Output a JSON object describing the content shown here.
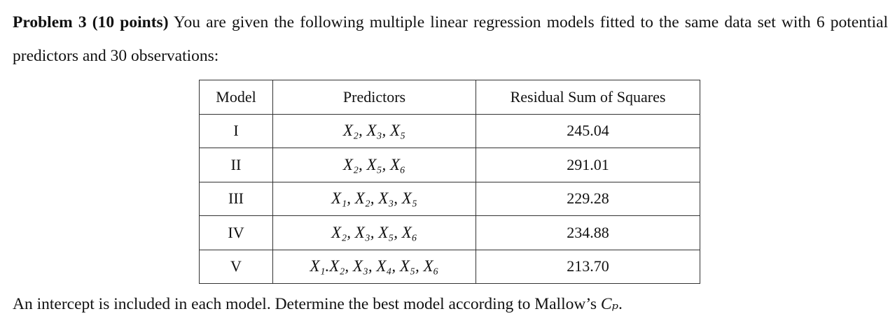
{
  "problem": {
    "label": "Problem 3 (10 points)",
    "intro": "You are given the following multiple linear regression models fitted to the same data set with 6 potential predictors and 30 observations:"
  },
  "table": {
    "headers": [
      "Model",
      "Predictors",
      "Residual Sum of Squares"
    ],
    "rows": [
      [
        "I",
        "X₂, X₃, X₅",
        "245.04"
      ],
      [
        "II",
        "X₂, X₅, X₆",
        "291.01"
      ],
      [
        "III",
        "X₁, X₂, X₃, X₅",
        "229.28"
      ],
      [
        "IV",
        "X₂, X₃, X₅, X₆",
        "234.88"
      ],
      [
        "V",
        "X₁.X₂, X₃, X₄, X₅, X₆",
        "213.70"
      ]
    ]
  },
  "closing": {
    "text": "An intercept is included in each model. Determine the best model according to Mallow’s",
    "symbol": "Cₚ",
    "end": "."
  }
}
